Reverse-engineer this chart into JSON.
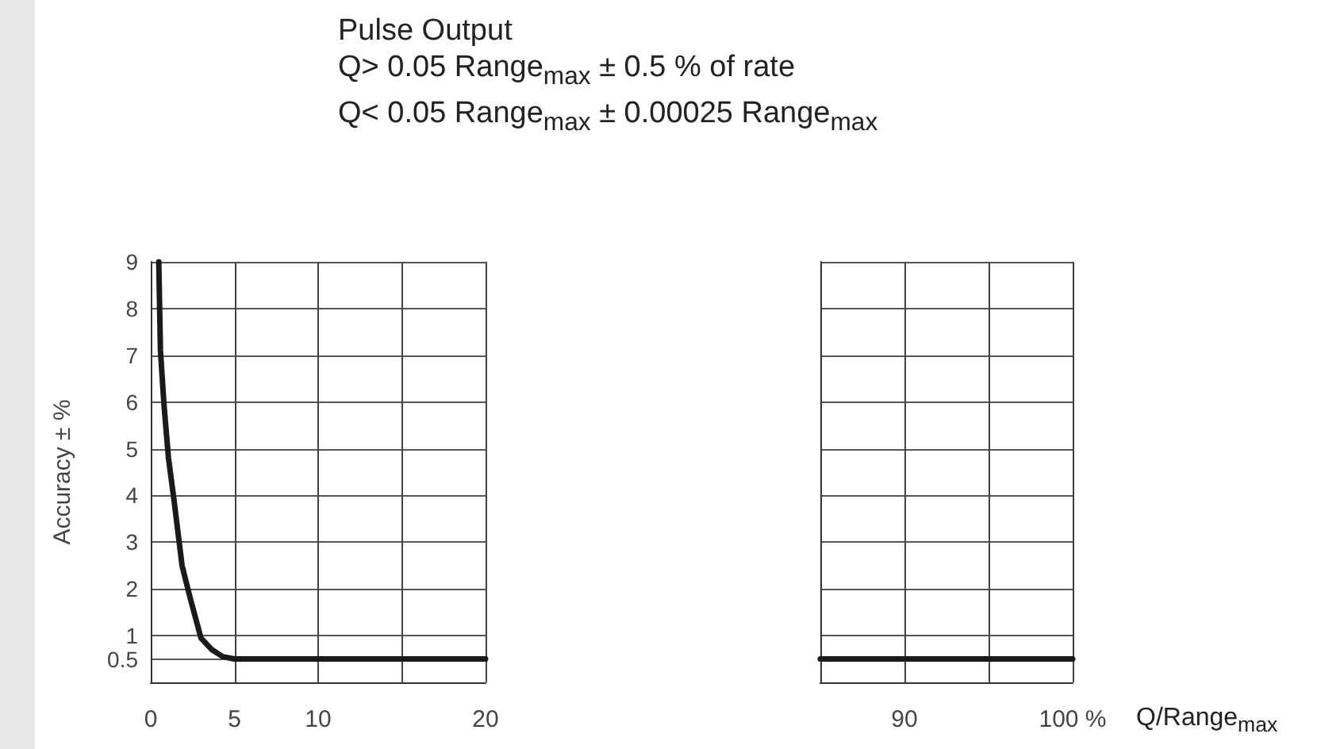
{
  "chart_data": [
    {
      "type": "line",
      "title": "Pulse Output",
      "subtitle": "Q> 0.05 Range$_{max}$ ± 0.5 % of rate\nQ< 0.05 Range$_{max}$ ± 0.00025 Range$_{max}$",
      "ylabel": "Accuracy ± %",
      "x": [
        0.48,
        0.58,
        0.8,
        1.06,
        1.39,
        1.87,
        2.36,
        3.0,
        3.65,
        4.3,
        5,
        20
      ],
      "series": [
        {
          "color": "#1a1a1a",
          "values": [
            9,
            7.1,
            5.9,
            4.8,
            3.9,
            2.5,
            1.8,
            0.95,
            0.7,
            0.55,
            0.5,
            0.5
          ]
        }
      ],
      "xlim": [
        0,
        20
      ],
      "xticks": [
        0,
        5,
        10,
        {
          "value": 15,
          "label": null
        },
        20
      ],
      "ylim": [
        0,
        9
      ],
      "yticks": [
        0.5,
        1,
        2,
        3,
        4,
        5,
        6,
        7,
        8,
        9
      ],
      "grid": true,
      "marker": "none",
      "line_style": "solid"
    },
    {
      "type": "line",
      "xlabel": "Q/Range$_{max}$",
      "x": [
        85,
        100
      ],
      "series": [
        {
          "color": "#1a1a1a",
          "values": [
            0.5,
            0.5
          ]
        }
      ],
      "xlim": [
        85,
        100
      ],
      "xticks": [
        {
          "value": 85,
          "label": null
        },
        90,
        {
          "value": 95,
          "label": null
        },
        {
          "value": 100,
          "label": "100 %"
        }
      ],
      "ylim": [
        0,
        9
      ],
      "yticks": [
        0.5,
        1,
        2,
        3,
        4,
        5,
        6,
        7,
        8,
        9
      ],
      "tick_labels": "x",
      "grid": true,
      "marker": "none",
      "line_style": "solid"
    }
  ]
}
